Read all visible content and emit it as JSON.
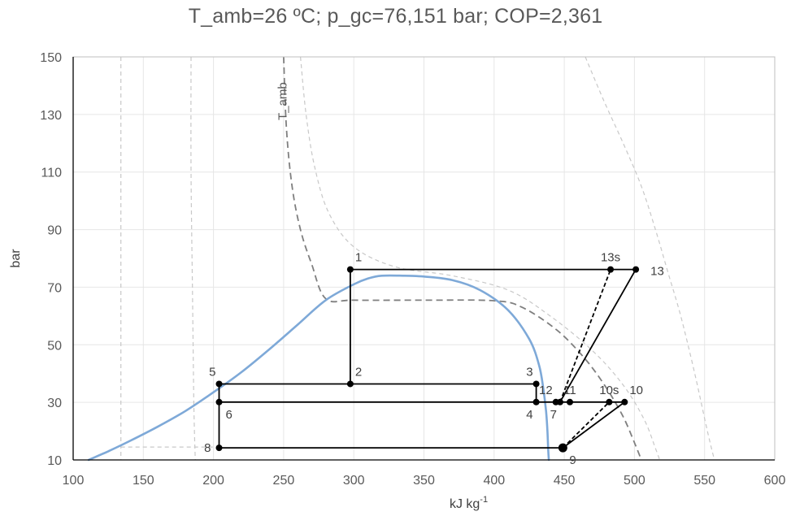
{
  "chart_data": {
    "type": "line",
    "title": "T_amb=26 ºC; p_gc=76,151 bar; COP=2,361",
    "xlabel": "kJ kg",
    "xlabel_sup": "-1",
    "ylabel": "bar",
    "xlim": [
      100,
      600
    ],
    "ylim": [
      10,
      150
    ],
    "x_ticks": [
      100,
      150,
      200,
      250,
      300,
      350,
      400,
      450,
      500,
      550,
      600
    ],
    "y_ticks": [
      10,
      30,
      50,
      70,
      90,
      110,
      130,
      150
    ],
    "grid": true,
    "legend": "none",
    "annotations": [
      {
        "text": "T_amb",
        "x": 252,
        "y": 128,
        "rotation": -90
      }
    ],
    "colors": {
      "saturation_dome": "#7ea9d8",
      "cycle": "#000000",
      "isotherm": "#7f7f7f",
      "isotherm_light": "#c8c8c8",
      "grid": "#e6e6e6",
      "axis": "#000000"
    },
    "saturation_dome": [
      [
        111,
        10
      ],
      [
        125,
        13
      ],
      [
        140,
        16.5
      ],
      [
        160,
        21.5
      ],
      [
        180,
        27
      ],
      [
        200,
        33.5
      ],
      [
        220,
        40.5
      ],
      [
        240,
        48.5
      ],
      [
        260,
        57
      ],
      [
        280,
        65.5
      ],
      [
        300,
        71
      ],
      [
        310,
        73
      ],
      [
        320,
        74
      ],
      [
        335,
        74
      ],
      [
        350,
        73.7
      ],
      [
        370,
        72.5
      ],
      [
        390,
        69
      ],
      [
        410,
        62
      ],
      [
        425,
        52
      ],
      [
        432,
        43
      ],
      [
        435,
        35
      ],
      [
        437,
        27
      ],
      [
        438,
        20
      ],
      [
        438.5,
        14
      ],
      [
        439,
        10
      ]
    ],
    "isotherms": [
      {
        "style": "dashed-light",
        "points": [
          [
            134,
            150
          ],
          [
            134,
            10
          ]
        ]
      },
      {
        "style": "dashed-light",
        "points": [
          [
            184,
            150
          ],
          [
            184,
            110
          ],
          [
            185,
            70
          ],
          [
            186,
            30
          ],
          [
            187,
            10
          ]
        ]
      },
      {
        "style": "dashed-dark",
        "points": [
          [
            250,
            150
          ],
          [
            252,
            125
          ],
          [
            256,
            105
          ],
          [
            262,
            90
          ],
          [
            270,
            78
          ],
          [
            280,
            66
          ],
          [
            300,
            65.5
          ],
          [
            350,
            65.5
          ],
          [
            400,
            65.3
          ],
          [
            420,
            63
          ],
          [
            445,
            55
          ],
          [
            465,
            45
          ],
          [
            480,
            35
          ],
          [
            492,
            25
          ],
          [
            500,
            16
          ],
          [
            505,
            10
          ]
        ]
      },
      {
        "style": "dashed-light",
        "points": [
          [
            262,
            150
          ],
          [
            266,
            130
          ],
          [
            272,
            112
          ],
          [
            282,
            96
          ],
          [
            300,
            84
          ],
          [
            330,
            77
          ],
          [
            370,
            74
          ],
          [
            410,
            69
          ],
          [
            440,
            60
          ],
          [
            470,
            48
          ],
          [
            492,
            36
          ],
          [
            507,
            24
          ],
          [
            515,
            14
          ],
          [
            518,
            10
          ]
        ]
      },
      {
        "style": "dashed-light",
        "points": [
          [
            465,
            150
          ],
          [
            478,
            135
          ],
          [
            492,
            120
          ],
          [
            505,
            105
          ],
          [
            515,
            90
          ],
          [
            524,
            75
          ],
          [
            533,
            60
          ],
          [
            543,
            40
          ],
          [
            552,
            20
          ],
          [
            557,
            10
          ]
        ]
      },
      {
        "style": "dashed-light",
        "points": [
          [
            134,
            14.5
          ],
          [
            200,
            14.5
          ]
        ]
      }
    ],
    "series": [
      {
        "style": "solid",
        "points": [
          [
            297.5,
            76.15
          ],
          [
            501,
            76.15
          ]
        ]
      },
      {
        "style": "solid",
        "points": [
          [
            297.5,
            76.15
          ],
          [
            297.5,
            36.4
          ]
        ]
      },
      {
        "style": "solid",
        "points": [
          [
            204,
            36.4
          ],
          [
            430,
            36.4
          ]
        ]
      },
      {
        "style": "solid",
        "points": [
          [
            430,
            36.4
          ],
          [
            430,
            30.1
          ]
        ]
      },
      {
        "style": "solid",
        "points": [
          [
            204,
            36.4
          ],
          [
            204,
            14.2
          ]
        ]
      },
      {
        "style": "solid",
        "points": [
          [
            204,
            30.1
          ],
          [
            493,
            30.1
          ]
        ]
      },
      {
        "style": "solid",
        "points": [
          [
            204,
            14.2
          ],
          [
            449,
            14.2
          ]
        ]
      },
      {
        "style": "solid",
        "points": [
          [
            447,
            30.1
          ],
          [
            501,
            76.15
          ]
        ]
      },
      {
        "style": "dashed",
        "points": [
          [
            447,
            30.1
          ],
          [
            483,
            76.15
          ]
        ]
      },
      {
        "style": "solid",
        "points": [
          [
            449,
            14.2
          ],
          [
            493,
            30.1
          ]
        ]
      },
      {
        "style": "dashed",
        "points": [
          [
            449,
            14.2
          ],
          [
            482,
            30.1
          ]
        ]
      },
      {
        "style": "dotted",
        "points": [
          [
            204,
            30.1
          ],
          [
            430,
            30.1
          ]
        ]
      },
      {
        "style": "dotted",
        "points": [
          [
            204,
            14.2
          ],
          [
            449,
            14.2
          ]
        ]
      }
    ],
    "points": [
      {
        "label": "1",
        "x": 297.5,
        "y": 76.15,
        "label_pos": "above-right"
      },
      {
        "label": "2",
        "x": 297.5,
        "y": 36.4,
        "label_pos": "above-right"
      },
      {
        "label": "3",
        "x": 430,
        "y": 36.4,
        "label_pos": "above-left"
      },
      {
        "label": "4",
        "x": 430,
        "y": 30.1,
        "label_pos": "below-left"
      },
      {
        "label": "5",
        "x": 204,
        "y": 36.4,
        "label_pos": "above-left"
      },
      {
        "label": "6",
        "x": 204,
        "y": 30.1,
        "label_pos": "below-right"
      },
      {
        "label": "7",
        "x": 447,
        "y": 30.1,
        "label_pos": "below-left"
      },
      {
        "label": "8",
        "x": 204,
        "y": 14.2,
        "label_pos": "left"
      },
      {
        "label": "9",
        "x": 449,
        "y": 14.2,
        "label_pos": "below-right",
        "size": "large"
      },
      {
        "label": "10",
        "x": 493,
        "y": 30.1,
        "label_pos": "above-right"
      },
      {
        "label": "10s",
        "x": 482,
        "y": 30.1,
        "label_pos": "above"
      },
      {
        "label": "11",
        "x": 454,
        "y": 30.1,
        "label_pos": "above"
      },
      {
        "label": "12",
        "x": 444,
        "y": 30.1,
        "label_pos": "above-left"
      },
      {
        "label": "13",
        "x": 501,
        "y": 76.15,
        "label_pos": "right"
      },
      {
        "label": "13s",
        "x": 483,
        "y": 76.15,
        "label_pos": "above"
      }
    ]
  }
}
